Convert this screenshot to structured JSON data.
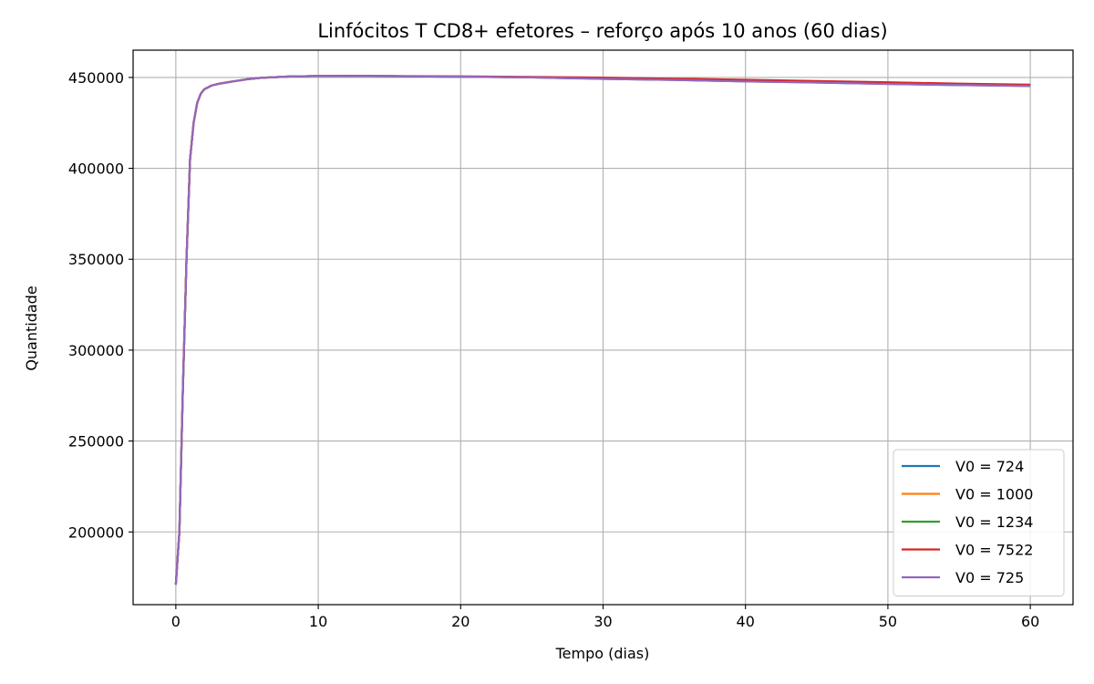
{
  "chart_data": {
    "type": "line",
    "title": "Linfócitos T CD8+ efetores – reforço após 10 anos (60 dias)",
    "xlabel": "Tempo (dias)",
    "ylabel": "Quantidade",
    "xlim": [
      -3,
      63
    ],
    "ylim": [
      160000,
      465000
    ],
    "xticks": [
      0,
      10,
      20,
      30,
      40,
      50,
      60
    ],
    "yticks": [
      200000,
      250000,
      300000,
      350000,
      400000,
      450000
    ],
    "xtick_labels": [
      "0",
      "10",
      "20",
      "30",
      "40",
      "50",
      "60"
    ],
    "ytick_labels": [
      "200000",
      "250000",
      "300000",
      "350000",
      "400000",
      "450000"
    ],
    "grid": true,
    "legend_position": "lower-right",
    "series": [
      {
        "name": "V0 = 724",
        "color": "#1f77b4",
        "x": [
          0,
          0.25,
          0.5,
          0.75,
          1,
          1.25,
          1.5,
          1.75,
          2,
          2.5,
          3,
          4,
          5,
          6,
          8,
          10,
          12,
          15,
          20,
          25,
          30,
          35,
          40,
          45,
          50,
          55,
          60
        ],
        "y": [
          171000,
          200000,
          280000,
          350000,
          405000,
          425000,
          436000,
          441000,
          443500,
          445500,
          446500,
          447800,
          449000,
          449800,
          450500,
          450800,
          450800,
          450700,
          450400,
          450000,
          449200,
          448600,
          447800,
          447200,
          446400,
          445800,
          445300
        ]
      },
      {
        "name": "V0 = 1000",
        "color": "#ff7f0e",
        "x": [
          0,
          0.25,
          0.5,
          0.75,
          1,
          1.25,
          1.5,
          1.75,
          2,
          2.5,
          3,
          4,
          5,
          6,
          8,
          10,
          12,
          15,
          20,
          25,
          30,
          35,
          40,
          45,
          50,
          55,
          60
        ],
        "y": [
          171000,
          200000,
          280000,
          350000,
          405000,
          425000,
          436000,
          441000,
          443500,
          445500,
          446500,
          447800,
          449000,
          449800,
          450500,
          450800,
          450800,
          450700,
          450400,
          450100,
          449500,
          448900,
          448200,
          447500,
          446800,
          446200,
          445600
        ]
      },
      {
        "name": "V0 = 1234",
        "color": "#2ca02c",
        "x": [
          0,
          0.25,
          0.5,
          0.75,
          1,
          1.25,
          1.5,
          1.75,
          2,
          2.5,
          3,
          4,
          5,
          6,
          8,
          10,
          12,
          15,
          20,
          25,
          30,
          35,
          40,
          45,
          50,
          55,
          60
        ],
        "y": [
          171000,
          200000,
          280000,
          350000,
          405000,
          425000,
          436000,
          441000,
          443500,
          445500,
          446500,
          447800,
          449000,
          449800,
          450500,
          450800,
          450800,
          450700,
          450400,
          450100,
          449600,
          449000,
          448300,
          447600,
          446900,
          446300,
          445700
        ]
      },
      {
        "name": "V0 = 7522",
        "color": "#d62728",
        "x": [
          0,
          0.25,
          0.5,
          0.75,
          1,
          1.25,
          1.5,
          1.75,
          2,
          2.5,
          3,
          4,
          5,
          6,
          8,
          10,
          12,
          15,
          20,
          25,
          30,
          35,
          40,
          45,
          50,
          55,
          60
        ],
        "y": [
          171000,
          200000,
          280000,
          350000,
          405000,
          425000,
          436000,
          441000,
          443500,
          445500,
          446500,
          447800,
          449000,
          449800,
          450500,
          450800,
          450900,
          450800,
          450600,
          450300,
          449900,
          449300,
          448700,
          448000,
          447300,
          446600,
          446000
        ]
      },
      {
        "name": "V0 = 725",
        "color": "#9467bd",
        "x": [
          0,
          0.25,
          0.5,
          0.75,
          1,
          1.25,
          1.5,
          1.75,
          2,
          2.5,
          3,
          4,
          5,
          6,
          8,
          10,
          12,
          15,
          20,
          25,
          30,
          35,
          40,
          45,
          50,
          55,
          60
        ],
        "y": [
          171000,
          200000,
          280000,
          350000,
          405000,
          425000,
          436000,
          441000,
          443500,
          445500,
          446500,
          447800,
          449000,
          449800,
          450500,
          450800,
          450800,
          450700,
          450400,
          450000,
          449200,
          448600,
          447800,
          447200,
          446400,
          445800,
          445300
        ]
      }
    ]
  }
}
